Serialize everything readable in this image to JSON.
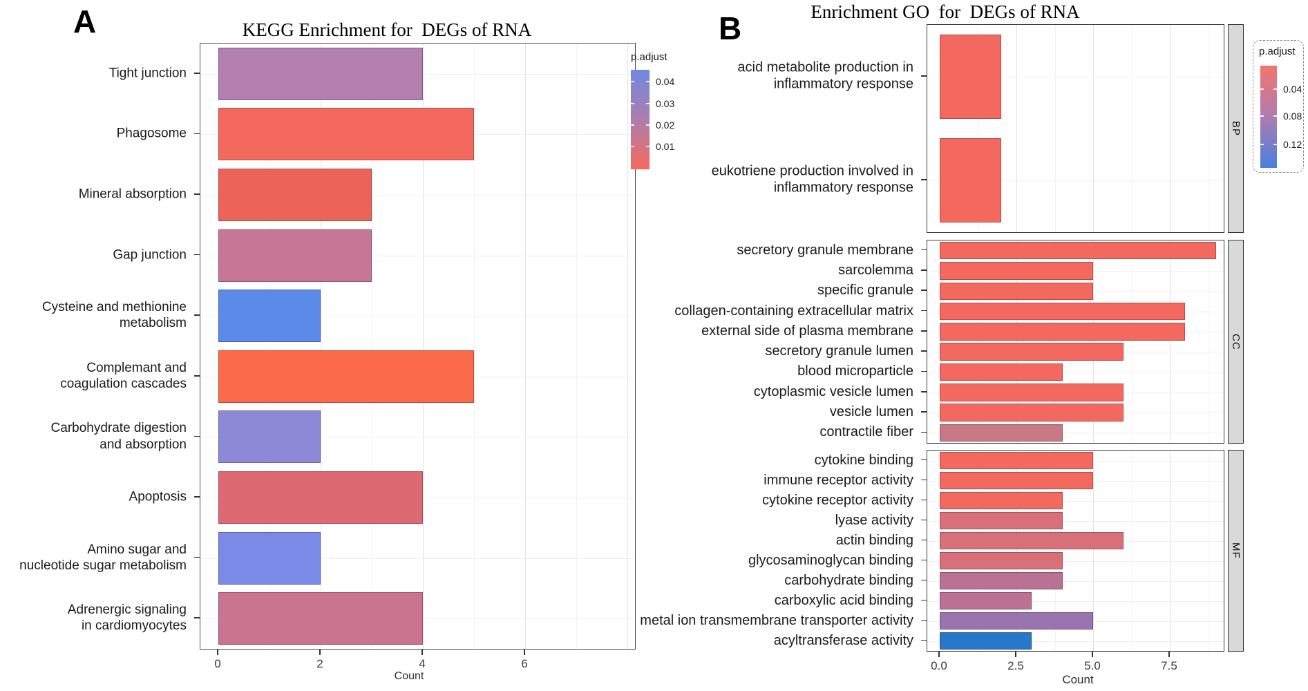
{
  "chart_data": [
    {
      "type": "bar",
      "panel_label": "A",
      "title": "KEGG Enrichment for  DEGs of RNA",
      "xlabel": "Count",
      "x_ticks": [
        "0",
        "2",
        "4",
        "6"
      ],
      "x_tick_values": [
        0,
        2,
        4,
        6
      ],
      "xlim": [
        0,
        8.18
      ],
      "grid": true,
      "legend_position": "right",
      "categories": [
        "Tight junction",
        "Phagosome",
        "Mineral absorption",
        "Gap junction",
        "Cysteine and methionine\nmetabolism",
        "Complemant and\ncoagulation cascades",
        "Carbohydrate digestion\nand absorption",
        "Apoptosis",
        "Amino sugar and\nnucleotide sugar metabolism",
        "Adrenergic signaling\nin cardiomyocytes"
      ],
      "values": [
        4,
        5,
        3,
        3,
        2,
        5,
        2,
        4,
        2,
        4
      ],
      "bar_colors": [
        "#b27fae",
        "#f4695e",
        "#ec635a",
        "#c77795",
        "#5b8ae8",
        "#fb6a4b",
        "#8c8ad6",
        "#dd6a72",
        "#7b8ae6",
        "#cb7490"
      ],
      "legend": {
        "title": "p.adjust",
        "ticks": [
          "0.04",
          "0.03",
          "0.02",
          "0.01"
        ],
        "tick_pos": [
          0.118,
          0.34,
          0.555,
          0.77
        ],
        "gradient": [
          "#6f89e3",
          "#ad7dad",
          "#f8695c"
        ]
      }
    },
    {
      "type": "bar",
      "panel_label": "B",
      "title": "Enrichment GO  for  DEGs of RNA",
      "xlabel": "Count",
      "x_ticks": [
        "0.0",
        "2.5",
        "5.0",
        "7.5"
      ],
      "x_tick_values": [
        0,
        2.5,
        5,
        7.5
      ],
      "xlim": [
        0,
        9.3
      ],
      "grid": true,
      "legend_position": "right",
      "facets": [
        {
          "label": "BP",
          "categories": [
            "acid metabolite production in\ninflammatory response",
            "eukotriene production involved in\ninflammatory response"
          ],
          "values": [
            2,
            2
          ],
          "bar_colors": [
            "#f4695f",
            "#f4695f"
          ]
        },
        {
          "label": "CC",
          "categories": [
            "secretory granule membrane",
            "sarcolemma",
            "specific granule",
            "collagen-containing extracellular matrix",
            "external side of plasma membrane",
            "secretory granule lumen",
            "blood microparticle",
            "cytoplasmic vesicle lumen",
            "vesicle lumen",
            "contractile fiber"
          ],
          "values": [
            9,
            5,
            5,
            8,
            8,
            6,
            4,
            6,
            6,
            4
          ],
          "bar_colors": [
            "#f4695f",
            "#f4695f",
            "#f4695f",
            "#f4695f",
            "#f4695f",
            "#f4695f",
            "#f4695f",
            "#f4695f",
            "#f4695f",
            "#c97983"
          ]
        },
        {
          "label": "MF",
          "categories": [
            "cytokine binding",
            "immune receptor activity",
            "cytokine receptor activity",
            "lyase activity",
            "actin binding",
            "glycosaminoglycan binding",
            "carbohydrate binding",
            "carboxylic acid binding",
            "metal ion transmembrane transporter activity",
            "acyltransferase activity"
          ],
          "values": [
            5,
            5,
            4,
            4,
            6,
            4,
            4,
            3,
            5,
            3
          ],
          "bar_colors": [
            "#f4695f",
            "#f4695f",
            "#f4695f",
            "#d8707a",
            "#d8707a",
            "#d8707a",
            "#bb7193",
            "#bb7193",
            "#9a74ae",
            "#2778ca"
          ]
        }
      ],
      "legend": {
        "title": "p.adjust",
        "ticks": [
          "0.04",
          "0.08",
          "0.12"
        ],
        "tick_pos": [
          0.23,
          0.49,
          0.77
        ],
        "gradient": [
          "#f4756c",
          "#ae7cb0",
          "#4a7fe0"
        ]
      }
    }
  ]
}
